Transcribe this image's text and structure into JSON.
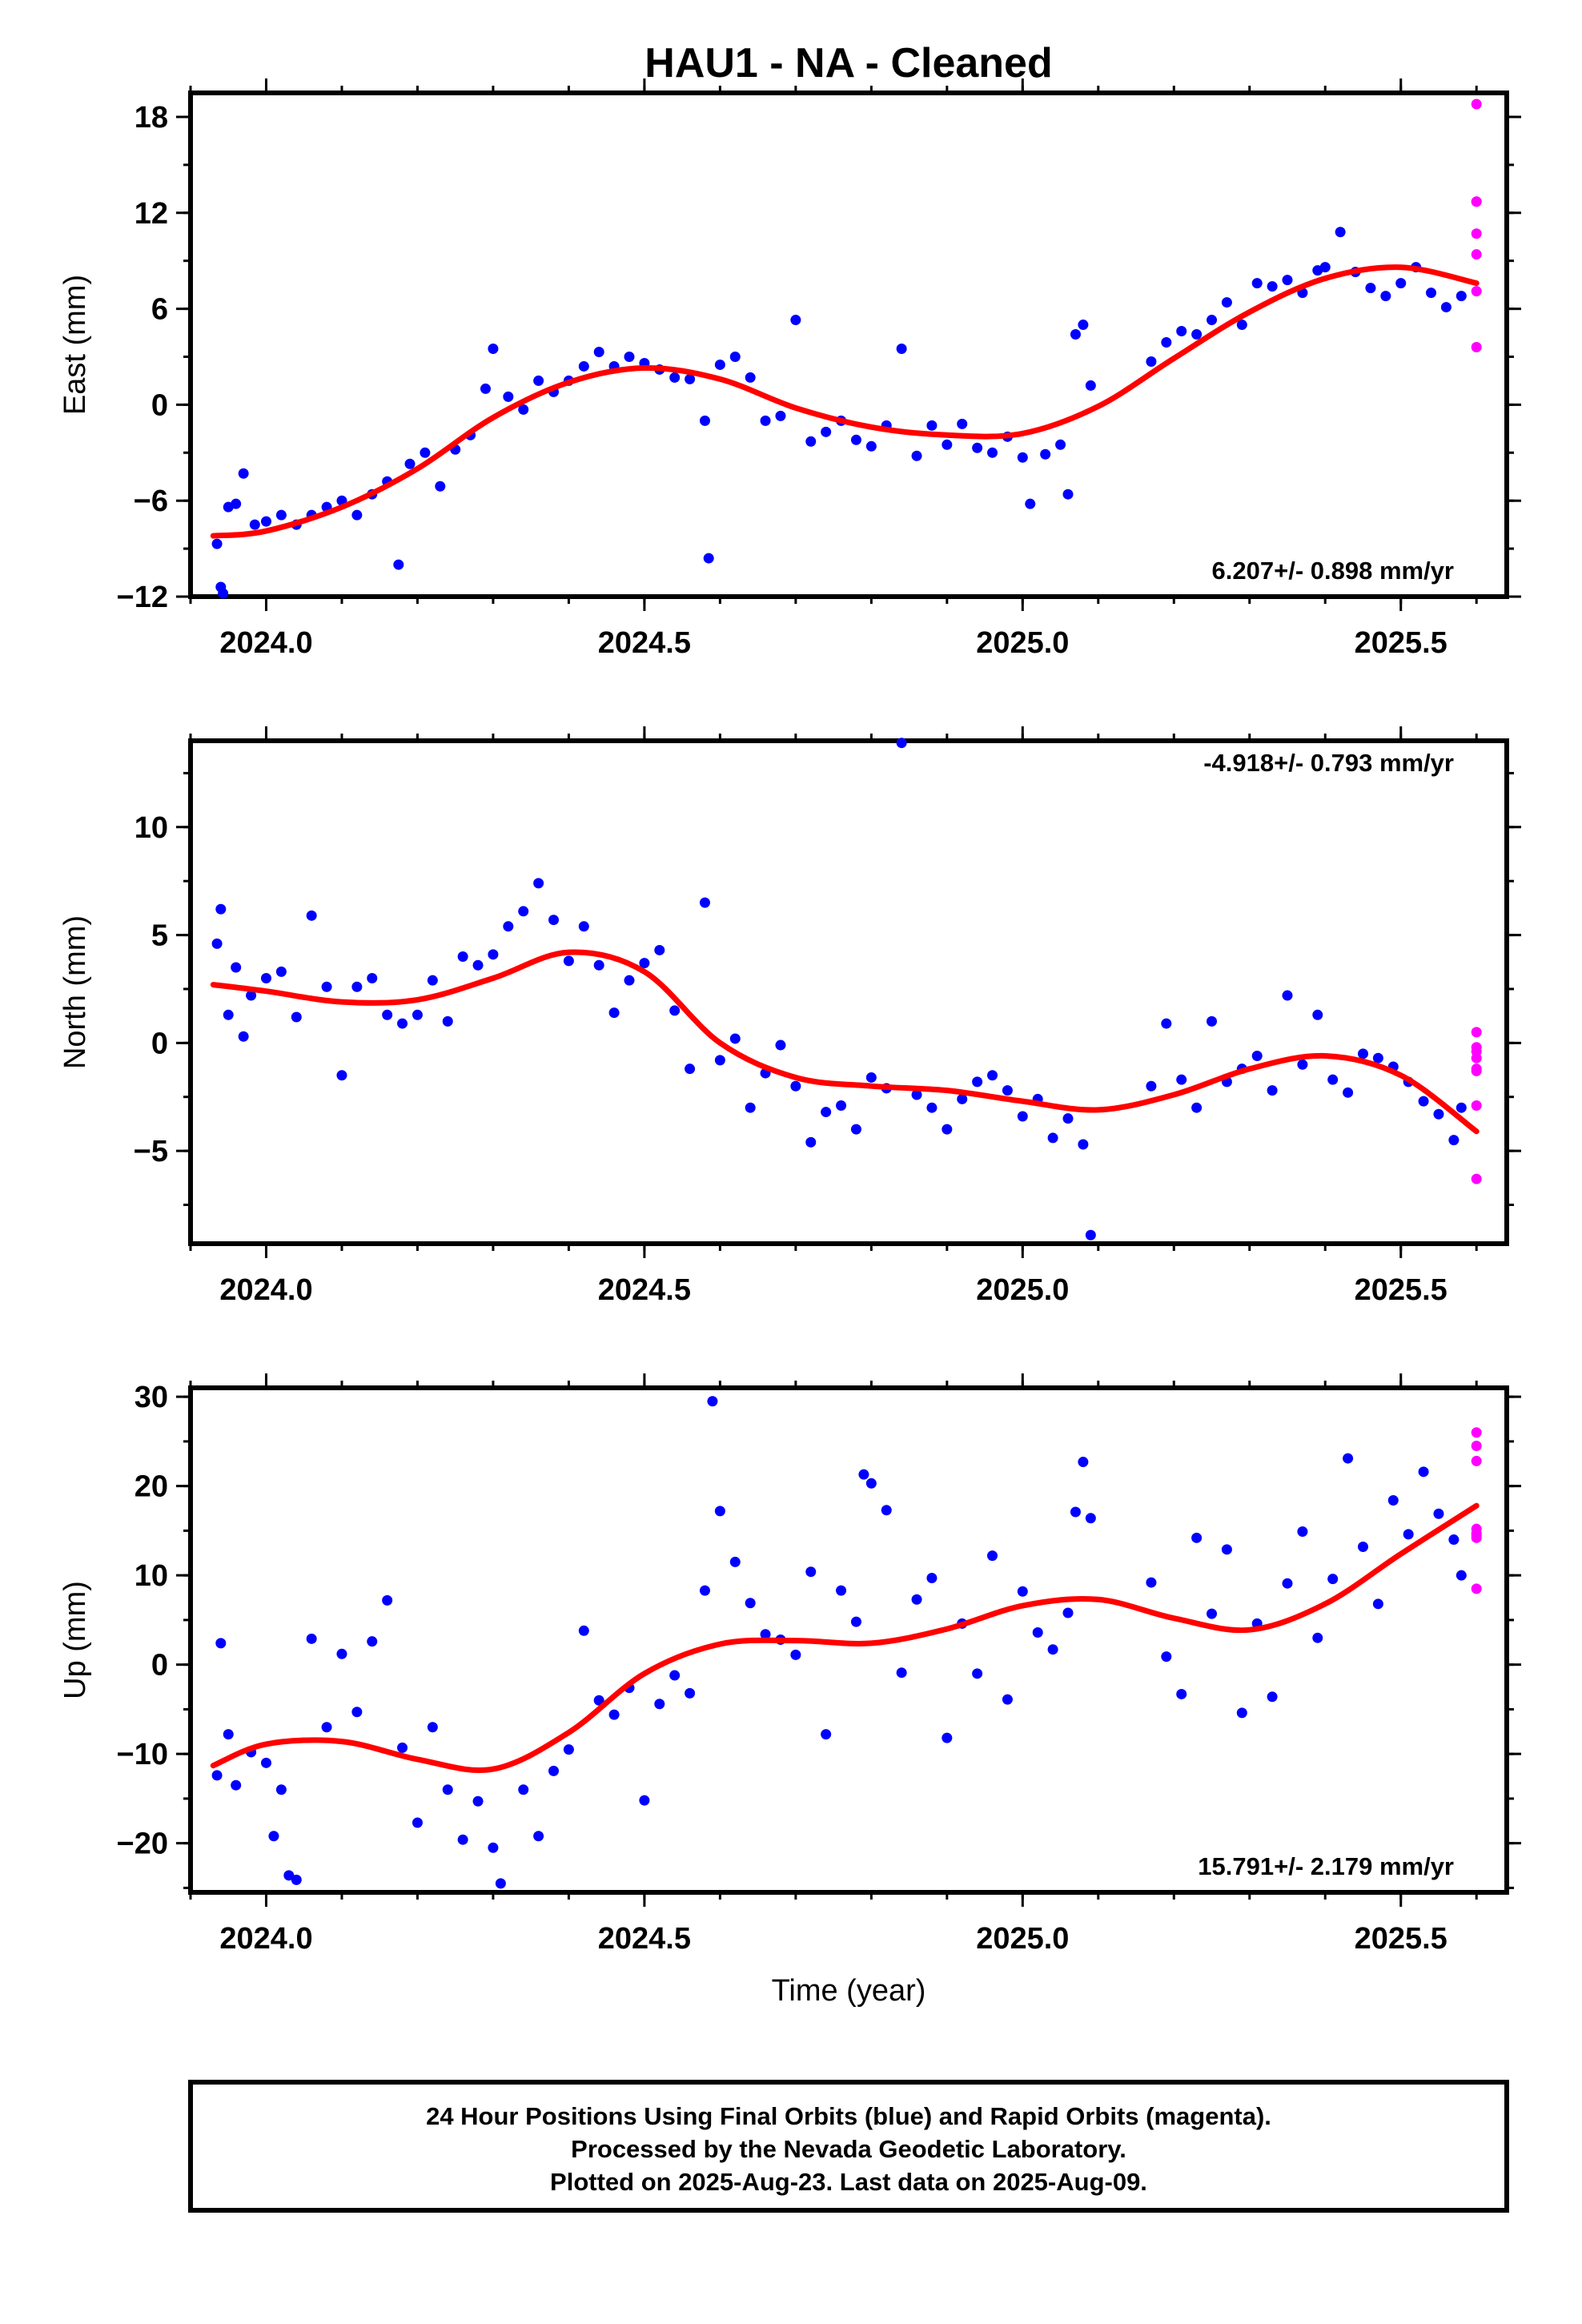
{
  "title": "HAU1  - NA - Cleaned",
  "xlabel": "Time (year)",
  "footer": {
    "line1": "24 Hour Positions Using Final Orbits (blue) and Rapid Orbits (magenta).",
    "line2": "Processed by the Nevada Geodetic Laboratory.",
    "line3": "Plotted on 2025-Aug-23. Last data on 2025-Aug-09."
  },
  "colors": {
    "final": "#0000ff",
    "rapid": "#ff00ff",
    "fit": "#ff0000"
  },
  "chart_data": [
    {
      "type": "scatter",
      "ylabel": "East (mm)",
      "rate": "6.207+/- 0.898 mm/yr",
      "rate_position": "bottom-right",
      "xlim": [
        2023.9,
        2025.64
      ],
      "ylim": [
        -12,
        19.5
      ],
      "yticks": [
        -12,
        -6,
        0,
        6,
        12,
        18
      ],
      "ytick_labels": [
        "−12",
        "−6",
        "0",
        "6",
        "12",
        "18"
      ],
      "xticks": [
        2024.0,
        2024.5,
        2025.0,
        2025.5
      ],
      "xtick_labels": [
        "2024.0",
        "2024.5",
        "2025.0",
        "2025.5"
      ],
      "fit_x": [
        2023.93,
        2024.0,
        2024.1,
        2024.2,
        2024.3,
        2024.4,
        2024.5,
        2024.6,
        2024.7,
        2024.8,
        2024.9,
        2025.0,
        2025.1,
        2025.2,
        2025.3,
        2025.4,
        2025.5,
        2025.6
      ],
      "fit_y": [
        -8.2,
        -7.9,
        -6.4,
        -4.0,
        -0.8,
        1.4,
        2.3,
        1.6,
        -0.2,
        -1.4,
        -1.9,
        -1.8,
        -0.1,
        2.9,
        5.8,
        7.9,
        8.6,
        7.6
      ],
      "final_x": [
        2023.935,
        2023.94,
        2023.943,
        2023.95,
        2023.96,
        2023.97,
        2023.985,
        2024.0,
        2024.02,
        2024.04,
        2024.06,
        2024.08,
        2024.1,
        2024.12,
        2024.14,
        2024.16,
        2024.175,
        2024.19,
        2024.21,
        2024.23,
        2024.25,
        2024.27,
        2024.29,
        2024.3,
        2024.32,
        2024.34,
        2024.36,
        2024.38,
        2024.4,
        2024.42,
        2024.44,
        2024.46,
        2024.48,
        2024.5,
        2024.52,
        2024.54,
        2024.56,
        2024.58,
        2024.585,
        2024.6,
        2024.62,
        2024.64,
        2024.66,
        2024.68,
        2024.7,
        2024.72,
        2024.74,
        2024.76,
        2024.78,
        2024.8,
        2024.82,
        2024.84,
        2024.86,
        2024.88,
        2024.9,
        2024.92,
        2024.94,
        2024.96,
        2024.98,
        2025.0,
        2025.01,
        2025.03,
        2025.05,
        2025.06,
        2025.07,
        2025.08,
        2025.09,
        2025.17,
        2025.19,
        2025.21,
        2025.23,
        2025.25,
        2025.27,
        2025.29,
        2025.31,
        2025.33,
        2025.35,
        2025.37,
        2025.39,
        2025.4,
        2025.42,
        2025.44,
        2025.46,
        2025.48,
        2025.5,
        2025.52,
        2025.54,
        2025.56,
        2025.58
      ],
      "final_y": [
        -8.7,
        -11.4,
        -11.8,
        -6.4,
        -6.2,
        -4.3,
        -7.5,
        -7.3,
        -6.9,
        -7.5,
        -6.9,
        -6.4,
        -6.0,
        -6.9,
        -5.6,
        -4.8,
        -10.0,
        -3.7,
        -3.0,
        -5.1,
        -2.8,
        -1.9,
        1.0,
        3.5,
        0.5,
        -0.3,
        1.5,
        0.8,
        1.5,
        2.4,
        3.3,
        2.4,
        3.0,
        2.6,
        2.2,
        1.7,
        1.6,
        -1.0,
        -9.6,
        2.5,
        3.0,
        1.7,
        -1.0,
        -0.7,
        5.3,
        -2.3,
        -1.7,
        -1.0,
        -2.2,
        -2.6,
        -1.3,
        3.5,
        -3.2,
        -1.3,
        -2.5,
        -1.2,
        -2.7,
        -3.0,
        -2.0,
        -3.3,
        -6.2,
        -3.1,
        -2.5,
        -5.6,
        4.4,
        5.0,
        1.2,
        2.7,
        3.9,
        4.6,
        4.4,
        5.3,
        6.4,
        5.0,
        7.6,
        7.4,
        7.8,
        7.0,
        8.4,
        8.6,
        10.8,
        8.3,
        7.3,
        6.8,
        7.6,
        8.6,
        7.0,
        6.1,
        6.8
      ],
      "rapid_x": [
        2025.6,
        2025.6,
        2025.6,
        2025.6,
        2025.6,
        2025.6,
        2025.6
      ],
      "rapid_y": [
        18.8,
        12.7,
        12.7,
        10.7,
        9.4,
        7.1,
        3.6
      ]
    },
    {
      "type": "scatter",
      "ylabel": "North (mm)",
      "rate": "-4.918+/- 0.793 mm/yr",
      "rate_position": "top-right",
      "xlim": [
        2023.9,
        2025.64
      ],
      "ylim": [
        -9.3,
        14
      ],
      "yticks": [
        -5,
        0,
        5,
        10
      ],
      "ytick_labels": [
        "−5",
        "0",
        "5",
        "10"
      ],
      "xticks": [
        2024.0,
        2024.5,
        2025.0,
        2025.5
      ],
      "xtick_labels": [
        "2024.0",
        "2024.5",
        "2025.0",
        "2025.5"
      ],
      "fit_x": [
        2023.93,
        2024.0,
        2024.1,
        2024.2,
        2024.3,
        2024.4,
        2024.5,
        2024.6,
        2024.7,
        2024.8,
        2024.9,
        2025.0,
        2025.1,
        2025.2,
        2025.3,
        2025.4,
        2025.5,
        2025.6
      ],
      "fit_y": [
        2.7,
        2.4,
        1.9,
        2.0,
        3.0,
        4.2,
        3.3,
        0.0,
        -1.6,
        -2.0,
        -2.2,
        -2.7,
        -3.1,
        -2.4,
        -1.2,
        -0.6,
        -1.5,
        -4.1
      ],
      "final_x": [
        2023.935,
        2023.94,
        2023.95,
        2023.96,
        2023.97,
        2023.98,
        2024.0,
        2024.02,
        2024.04,
        2024.06,
        2024.08,
        2024.1,
        2024.12,
        2024.14,
        2024.16,
        2024.18,
        2024.2,
        2024.22,
        2024.24,
        2024.26,
        2024.28,
        2024.3,
        2024.32,
        2024.34,
        2024.36,
        2024.38,
        2024.4,
        2024.42,
        2024.44,
        2024.46,
        2024.48,
        2024.5,
        2024.52,
        2024.54,
        2024.56,
        2024.58,
        2024.6,
        2024.62,
        2024.64,
        2024.66,
        2024.68,
        2024.7,
        2024.72,
        2024.74,
        2024.76,
        2024.78,
        2024.8,
        2024.82,
        2024.84,
        2024.86,
        2024.88,
        2024.9,
        2024.92,
        2024.94,
        2024.96,
        2024.98,
        2025.0,
        2025.02,
        2025.04,
        2025.06,
        2025.08,
        2025.09,
        2025.17,
        2025.19,
        2025.21,
        2025.23,
        2025.25,
        2025.27,
        2025.29,
        2025.31,
        2025.33,
        2025.35,
        2025.37,
        2025.39,
        2025.41,
        2025.43,
        2025.45,
        2025.47,
        2025.49,
        2025.51,
        2025.53,
        2025.55,
        2025.57,
        2025.58
      ],
      "final_y": [
        4.6,
        6.2,
        1.3,
        3.5,
        0.3,
        2.2,
        3.0,
        3.3,
        1.2,
        5.9,
        2.6,
        -1.5,
        2.6,
        3.0,
        1.3,
        0.9,
        1.3,
        2.9,
        1.0,
        4.0,
        3.6,
        4.1,
        5.4,
        6.1,
        7.4,
        5.7,
        3.8,
        5.4,
        3.6,
        1.4,
        2.9,
        3.7,
        4.3,
        1.5,
        -1.2,
        6.5,
        -0.8,
        0.2,
        -3.0,
        -1.4,
        -0.1,
        -2.0,
        -4.6,
        -3.2,
        -2.9,
        -4.0,
        -1.6,
        -2.1,
        13.9,
        -2.4,
        -3.0,
        -4.0,
        -2.6,
        -1.8,
        -1.5,
        -2.2,
        -3.4,
        -2.6,
        -4.4,
        -3.5,
        -4.7,
        -8.9,
        -2.0,
        0.9,
        -1.7,
        -3.0,
        1.0,
        -1.8,
        -1.2,
        -0.6,
        -2.2,
        2.2,
        -1.0,
        1.3,
        -1.7,
        -2.3,
        -0.5,
        -0.7,
        -1.1,
        -1.8,
        -2.7,
        -3.3,
        -4.5,
        -3.0
      ],
      "rapid_x": [
        2025.6,
        2025.6,
        2025.6,
        2025.6,
        2025.6,
        2025.6,
        2025.6,
        2025.6
      ],
      "rapid_y": [
        0.5,
        -0.2,
        -0.4,
        -0.7,
        -1.2,
        -1.3,
        -2.9,
        -6.3
      ]
    },
    {
      "type": "scatter",
      "ylabel": "Up (mm)",
      "rate": "15.791+/- 2.179 mm/yr",
      "rate_position": "bottom-right",
      "xlim": [
        2023.9,
        2025.64
      ],
      "ylim": [
        -25.5,
        31
      ],
      "yticks": [
        -20,
        -10,
        0,
        10,
        20,
        30
      ],
      "ytick_labels": [
        "−20",
        "−10",
        "0",
        "10",
        "20",
        "30"
      ],
      "xticks": [
        2024.0,
        2024.5,
        2025.0,
        2025.5
      ],
      "xtick_labels": [
        "2024.0",
        "2024.5",
        "2025.0",
        "2025.5"
      ],
      "fit_x": [
        2023.93,
        2024.0,
        2024.1,
        2024.2,
        2024.3,
        2024.4,
        2024.5,
        2024.6,
        2024.7,
        2024.8,
        2024.9,
        2025.0,
        2025.1,
        2025.2,
        2025.3,
        2025.4,
        2025.5,
        2025.6
      ],
      "fit_y": [
        -11.3,
        -8.9,
        -8.6,
        -10.6,
        -11.7,
        -7.6,
        -1.0,
        2.3,
        2.7,
        2.4,
        4.0,
        6.6,
        7.3,
        5.2,
        3.9,
        6.8,
        12.4,
        17.8
      ],
      "final_x": [
        2023.935,
        2023.94,
        2023.95,
        2023.96,
        2023.98,
        2024.0,
        2024.01,
        2024.02,
        2024.03,
        2024.04,
        2024.06,
        2024.08,
        2024.1,
        2024.12,
        2024.14,
        2024.16,
        2024.18,
        2024.2,
        2024.22,
        2024.24,
        2024.26,
        2024.28,
        2024.3,
        2024.31,
        2024.34,
        2024.36,
        2024.38,
        2024.4,
        2024.42,
        2024.44,
        2024.46,
        2024.48,
        2024.5,
        2024.52,
        2024.54,
        2024.56,
        2024.58,
        2024.59,
        2024.6,
        2024.62,
        2024.64,
        2024.66,
        2024.68,
        2024.7,
        2024.72,
        2024.74,
        2024.76,
        2024.78,
        2024.79,
        2024.8,
        2024.82,
        2024.84,
        2024.86,
        2024.88,
        2024.9,
        2024.92,
        2024.94,
        2024.96,
        2024.98,
        2025.0,
        2025.02,
        2025.04,
        2025.06,
        2025.07,
        2025.08,
        2025.09,
        2025.17,
        2025.19,
        2025.21,
        2025.23,
        2025.25,
        2025.27,
        2025.29,
        2025.31,
        2025.33,
        2025.35,
        2025.37,
        2025.39,
        2025.41,
        2025.43,
        2025.45,
        2025.47,
        2025.49,
        2025.51,
        2025.53,
        2025.55,
        2025.57,
        2025.58
      ],
      "final_y": [
        -12.4,
        2.4,
        -7.8,
        -13.5,
        -9.8,
        -11.0,
        -19.2,
        -14.0,
        -23.6,
        -24.1,
        2.9,
        -7.0,
        1.2,
        -5.3,
        2.6,
        7.2,
        -9.3,
        -17.7,
        -7.0,
        -14.0,
        -19.6,
        -15.3,
        -20.5,
        -24.5,
        -14.0,
        -19.2,
        -11.9,
        -9.5,
        3.8,
        -4.0,
        -5.6,
        -2.6,
        -15.2,
        -4.4,
        -1.2,
        -3.2,
        8.3,
        29.5,
        17.2,
        11.5,
        6.9,
        3.4,
        2.8,
        1.1,
        10.4,
        -7.8,
        8.3,
        4.8,
        21.3,
        20.3,
        17.3,
        -0.9,
        7.3,
        9.7,
        -8.2,
        4.6,
        -1.0,
        12.2,
        -3.9,
        8.2,
        3.6,
        1.7,
        5.8,
        17.1,
        22.7,
        16.4,
        9.2,
        0.9,
        -3.3,
        14.2,
        5.7,
        12.9,
        -5.4,
        4.6,
        -3.6,
        9.1,
        14.9,
        3.0,
        9.6,
        23.1,
        13.2,
        6.8,
        18.4,
        14.6,
        21.6,
        16.9,
        14.0,
        10.0
      ],
      "rapid_x": [
        2025.6,
        2025.6,
        2025.6,
        2025.6,
        2025.6,
        2025.6,
        2025.6,
        2025.6
      ],
      "rapid_y": [
        26.0,
        24.5,
        22.8,
        15.2,
        14.7,
        14.5,
        14.2,
        8.5
      ]
    }
  ]
}
